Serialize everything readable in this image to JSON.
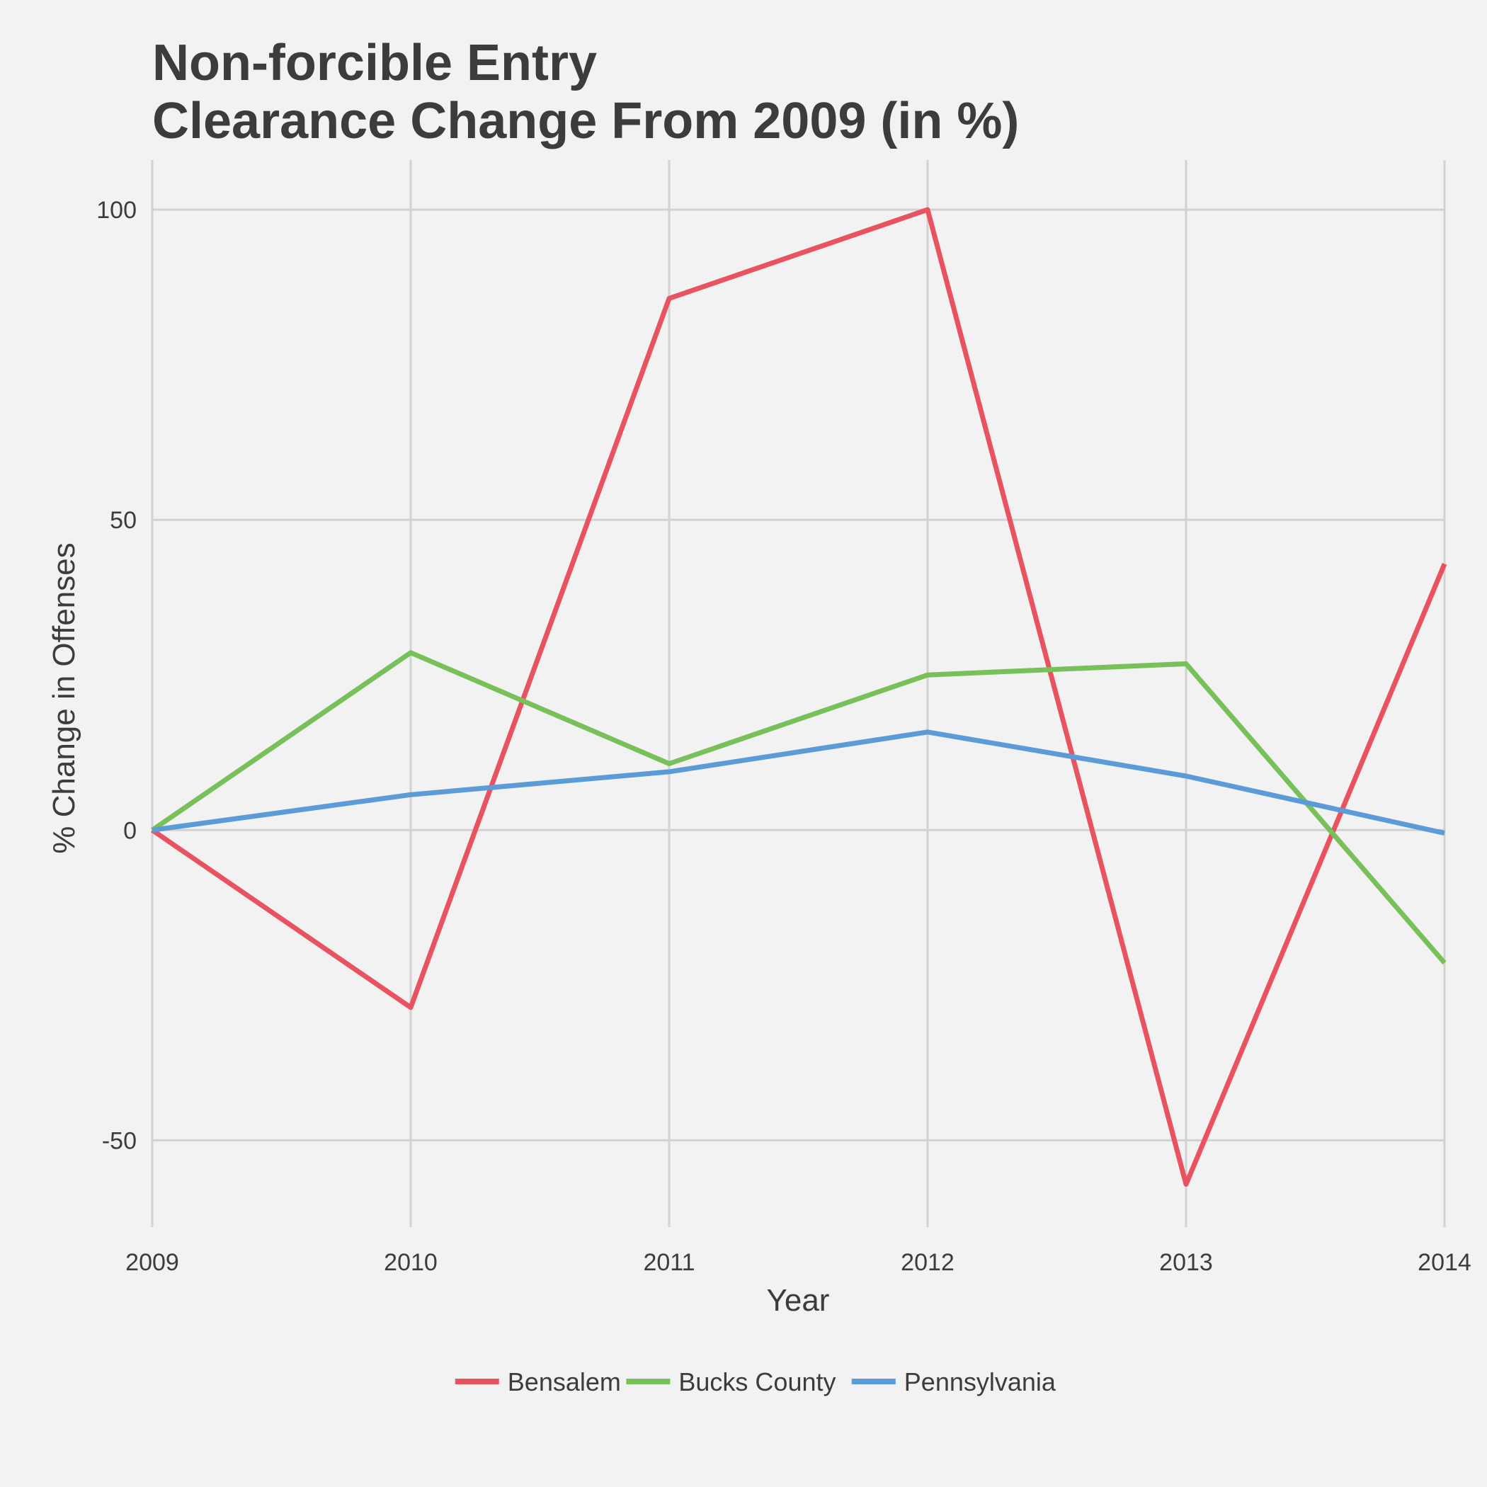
{
  "chart_data": {
    "type": "line",
    "title": [
      "Non-forcible Entry",
      "Clearance Change From 2009 (in %)"
    ],
    "xlabel": "Year",
    "ylabel": "% Change in Offenses",
    "x": [
      2009,
      2010,
      2011,
      2012,
      2013,
      2014
    ],
    "x_tick_labels": [
      "2009",
      "2010",
      "2011",
      "2012",
      "2013",
      "2014"
    ],
    "y_ticks": [
      -50,
      0,
      50,
      100
    ],
    "y_tick_labels": [
      "-50",
      "0",
      "50",
      "100"
    ],
    "xlim": [
      2009,
      2014
    ],
    "ylim": [
      -64,
      108
    ],
    "grid": true,
    "legend_position": "bottom",
    "series": [
      {
        "name": "Bensalem",
        "color": "#e8535f",
        "values": [
          0,
          -28.6,
          85.7,
          100,
          -57.1,
          42.9
        ]
      },
      {
        "name": "Bucks County",
        "color": "#78c05a",
        "values": [
          0,
          28.6,
          10.7,
          25.0,
          26.8,
          -21.4
        ]
      },
      {
        "name": "Pennsylvania",
        "color": "#5a9bd8",
        "values": [
          0,
          5.7,
          9.4,
          15.8,
          8.7,
          -0.5
        ]
      }
    ]
  }
}
